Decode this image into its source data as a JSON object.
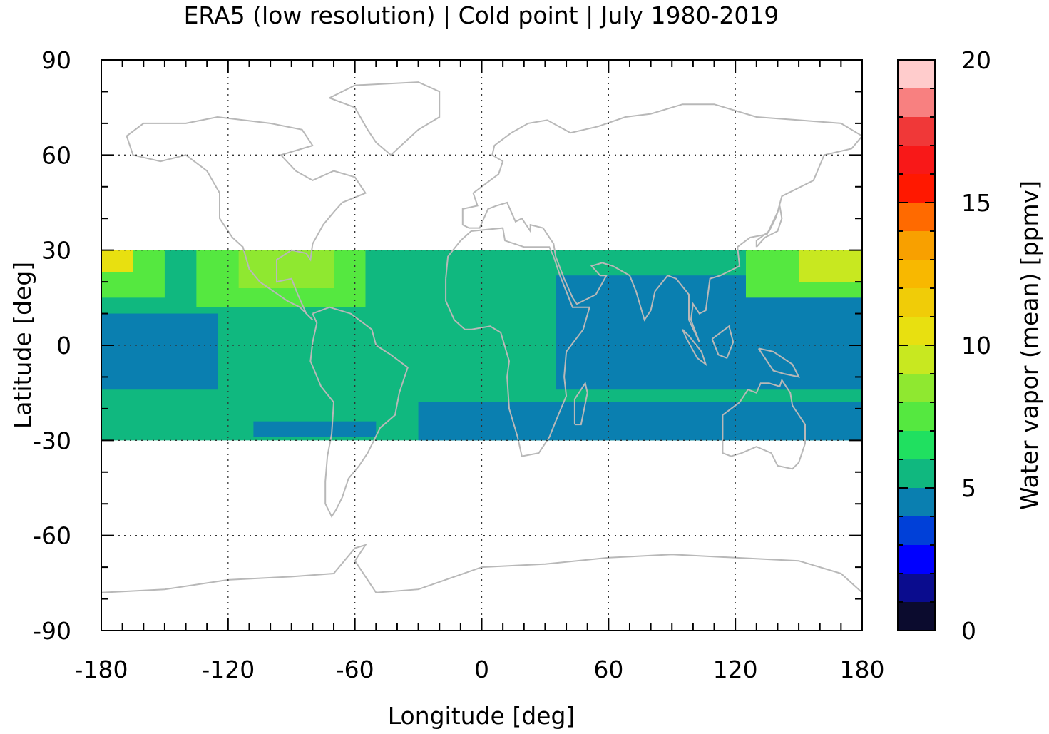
{
  "chart_data": {
    "type": "heatmap",
    "title": "ERA5 (low resolution) | Cold point | July 1980-2019",
    "xlabel": "Longitude [deg]",
    "ylabel": "Latitude [deg]",
    "colorbar_label": "Water vapor (mean) [ppmv]",
    "xlim": [
      -180,
      180
    ],
    "ylim": [
      -90,
      90
    ],
    "x_ticks": [
      "-180",
      "-120",
      "-60",
      "0",
      "60",
      "120",
      "180"
    ],
    "y_ticks": [
      "90",
      "60",
      "30",
      "0",
      "-30",
      "-60",
      "-90"
    ],
    "colorbar_ticks": [
      "20",
      "15",
      "10",
      "5",
      "0"
    ],
    "colorbar_range": [
      0,
      20
    ],
    "grid": true,
    "data_region": {
      "lon": [
        -180,
        180
      ],
      "lat": [
        -30,
        30
      ]
    },
    "colorbar_bins": [
      {
        "from": 0,
        "to": 1,
        "color": "#0b0b2e"
      },
      {
        "from": 1,
        "to": 2,
        "color": "#0a0c8e"
      },
      {
        "from": 2,
        "to": 3,
        "color": "#0000ff"
      },
      {
        "from": 3,
        "to": 4,
        "color": "#0040d8"
      },
      {
        "from": 4,
        "to": 5,
        "color": "#0a7fb0"
      },
      {
        "from": 5,
        "to": 6,
        "color": "#10b87f"
      },
      {
        "from": 6,
        "to": 7,
        "color": "#20e060"
      },
      {
        "from": 7,
        "to": 8,
        "color": "#55e840"
      },
      {
        "from": 8,
        "to": 9,
        "color": "#8fe830"
      },
      {
        "from": 9,
        "to": 10,
        "color": "#c8e820"
      },
      {
        "from": 10,
        "to": 11,
        "color": "#e8e010"
      },
      {
        "from": 11,
        "to": 12,
        "color": "#f0cc08"
      },
      {
        "from": 12,
        "to": 13,
        "color": "#f8b800"
      },
      {
        "from": 13,
        "to": 14,
        "color": "#f8a000"
      },
      {
        "from": 14,
        "to": 15,
        "color": "#ff6a00"
      },
      {
        "from": 15,
        "to": 16,
        "color": "#ff1800"
      },
      {
        "from": 16,
        "to": 17,
        "color": "#f81818"
      },
      {
        "from": 17,
        "to": 18,
        "color": "#f03838"
      },
      {
        "from": 18,
        "to": 19,
        "color": "#f88080"
      },
      {
        "from": 19,
        "to": 20,
        "color": "#ffcccc"
      }
    ],
    "field_regions": [
      {
        "name": "background",
        "value": 5.5,
        "color": "#10b87f",
        "lon": [
          -180,
          180
        ],
        "lat": [
          -30,
          30
        ]
      },
      {
        "name": "west-pacific-equatorial",
        "value": 4.5,
        "color": "#0a7fb0",
        "lon": [
          -180,
          -125
        ],
        "lat": [
          -14,
          10
        ]
      },
      {
        "name": "indo-pacific-warm-pool",
        "value": 4.5,
        "color": "#0a7fb0",
        "lon": [
          35,
          180
        ],
        "lat": [
          -14,
          22
        ]
      },
      {
        "name": "south-atlantic-indian-band",
        "value": 4.5,
        "color": "#0a7fb0",
        "lon": [
          -30,
          180
        ],
        "lat": [
          -30,
          -18
        ]
      },
      {
        "name": "south-america-band",
        "value": 4.5,
        "color": "#0a7fb0",
        "lon": [
          -108,
          -50
        ],
        "lat": [
          -29,
          -24
        ]
      },
      {
        "name": "north-american-monsoon",
        "value": 7.5,
        "color": "#55e840",
        "lon": [
          -135,
          -55
        ],
        "lat": [
          12,
          30
        ]
      },
      {
        "name": "north-american-monsoon-core",
        "value": 8.5,
        "color": "#8fe830",
        "lon": [
          -115,
          -70
        ],
        "lat": [
          18,
          30
        ]
      },
      {
        "name": "east-asian-monsoon",
        "value": 7.5,
        "color": "#55e840",
        "lon": [
          125,
          180
        ],
        "lat": [
          15,
          30
        ]
      },
      {
        "name": "east-asian-monsoon-core",
        "value": 9.5,
        "color": "#c8e820",
        "lon": [
          150,
          180
        ],
        "lat": [
          20,
          30
        ]
      },
      {
        "name": "central-pacific-north",
        "value": 7.5,
        "color": "#55e840",
        "lon": [
          -180,
          -150
        ],
        "lat": [
          15,
          30
        ]
      },
      {
        "name": "central-pacific-north-core",
        "value": 10.5,
        "color": "#e8e010",
        "lon": [
          -180,
          -165
        ],
        "lat": [
          23,
          30
        ]
      }
    ]
  }
}
